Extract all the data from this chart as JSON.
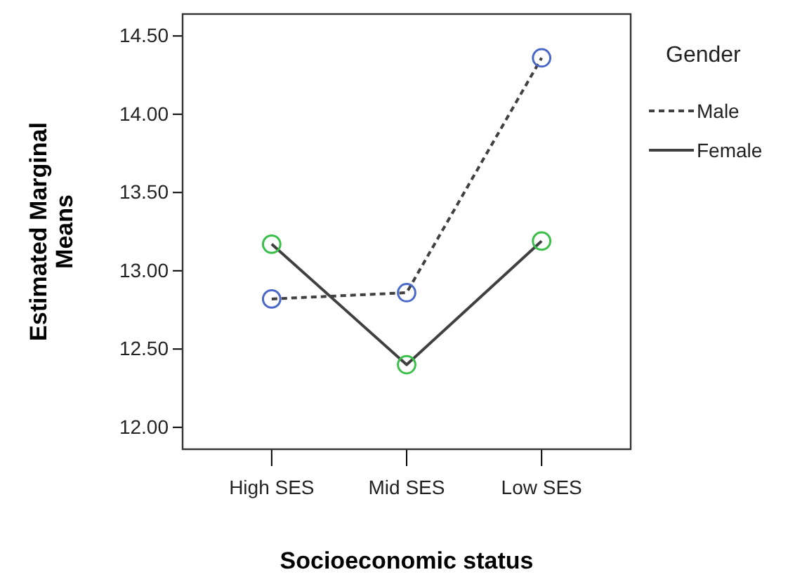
{
  "chart_data": {
    "type": "line",
    "xlabel": "Socioeconomic status",
    "ylabel": "Estimated Marginal Means",
    "legend_title": "Gender",
    "legend": "right",
    "marker": "circle",
    "grid": false,
    "categories": [
      "High SES",
      "Mid SES",
      "Low SES"
    ],
    "ylim": [
      11.86,
      14.64
    ],
    "yticks": [
      {
        "value": 12,
        "label": "12.00"
      },
      {
        "value": 12.5,
        "label": "12.50"
      },
      {
        "value": 13,
        "label": "13.00"
      },
      {
        "value": 13.5,
        "label": "13.50"
      },
      {
        "value": 14,
        "label": "14.00"
      },
      {
        "value": 14.5,
        "label": "14.50"
      }
    ],
    "series": [
      {
        "name": "Male",
        "color": "#404040",
        "colors": [
          "#4a68c8",
          "#4a68c8",
          "#4a68c8"
        ],
        "line_style": "dashed",
        "values": [
          12.82,
          12.86,
          14.36
        ]
      },
      {
        "name": "Female",
        "color": "#404040",
        "colors": [
          "#3cbf4a",
          "#3cbf4a",
          "#3cbf4a"
        ],
        "line_style": "solid",
        "values": [
          13.17,
          12.4,
          13.19
        ]
      }
    ]
  }
}
